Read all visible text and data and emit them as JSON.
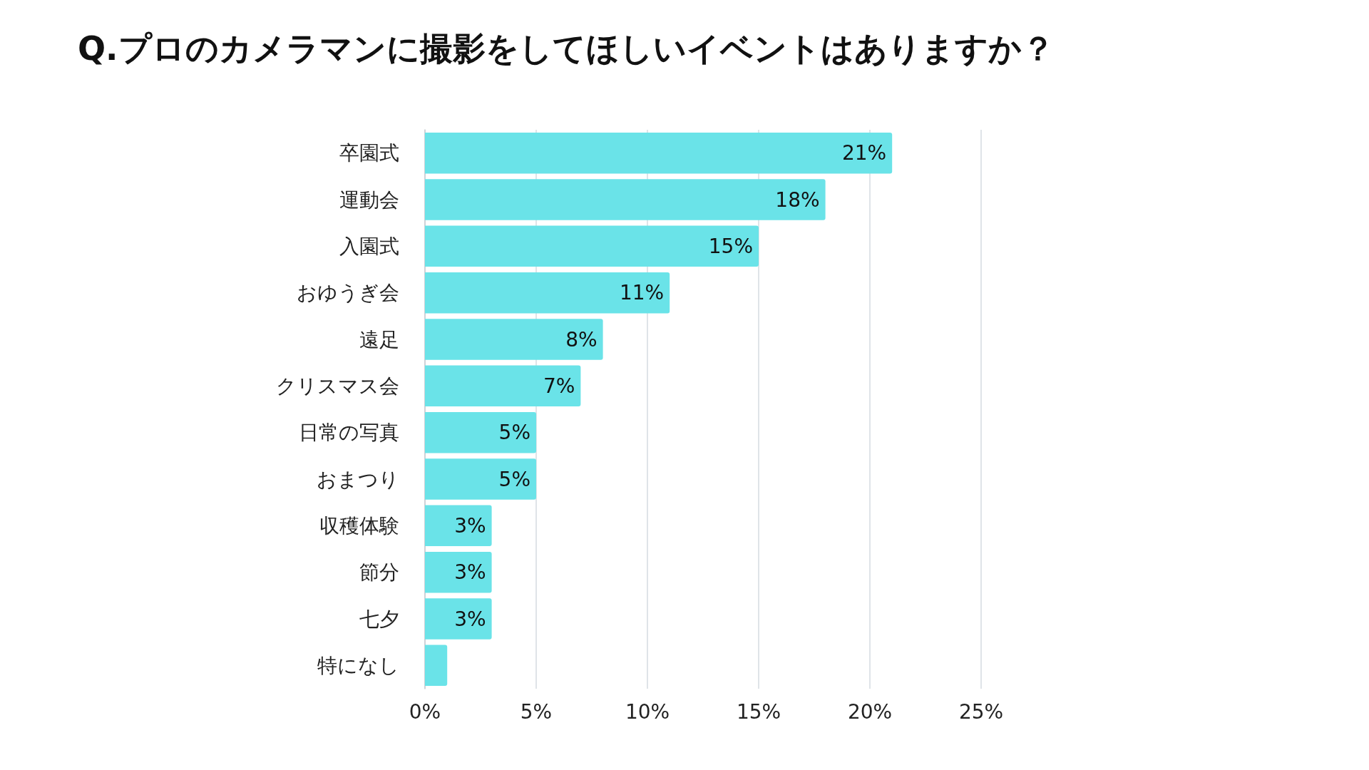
{
  "chart_data": {
    "type": "bar",
    "orientation": "horizontal",
    "title": "Q.プロのカメラマンに撮影をしてほしいイベントはありますか？",
    "categories": [
      "卒園式",
      "運動会",
      "入園式",
      "おゆうぎ会",
      "遠足",
      "クリスマス会",
      "日常の写真",
      "おまつり",
      "収穫体験",
      "節分",
      "七夕",
      "特になし"
    ],
    "values": [
      21,
      18,
      15,
      11,
      8,
      7,
      5,
      5,
      3,
      3,
      3,
      1
    ],
    "value_labels": [
      "21%",
      "18%",
      "15%",
      "11%",
      "8%",
      "7%",
      "5%",
      "5%",
      "3%",
      "3%",
      "3%",
      null
    ],
    "color": "#6ae3e8",
    "xlim": [
      0,
      25
    ],
    "xticks": [
      {
        "value": 0,
        "label": "0%"
      },
      {
        "value": 5,
        "label": "5%"
      },
      {
        "value": 10,
        "label": "10%"
      },
      {
        "value": 15,
        "label": "15%"
      },
      {
        "value": 20,
        "label": "20%"
      },
      {
        "value": 25,
        "label": "25%"
      }
    ],
    "grid": "x"
  }
}
